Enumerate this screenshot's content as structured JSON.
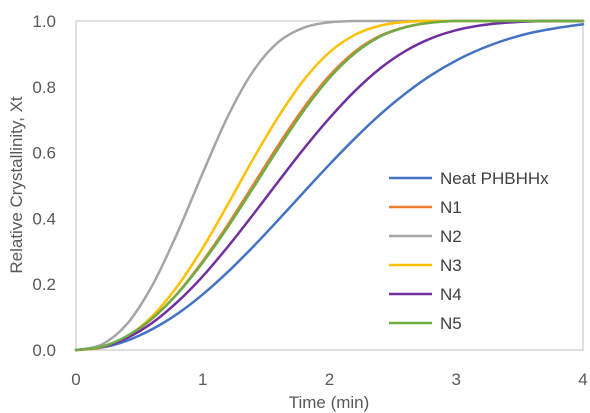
{
  "chart_data": {
    "type": "line",
    "xlabel": "Time (min)",
    "ylabel": "Relative Crystallinity, Xt",
    "xlim": [
      0,
      4
    ],
    "ylim": [
      0,
      1
    ],
    "xticks": [
      "0",
      "1",
      "2",
      "3",
      "4"
    ],
    "yticks": [
      "0.0",
      "0.2",
      "0.4",
      "0.6",
      "0.8",
      "1.0"
    ],
    "grid": false,
    "legend_position": "right",
    "x": [
      0,
      0.2,
      0.4,
      0.6,
      0.8,
      1.0,
      1.2,
      1.4,
      1.6,
      1.8,
      2.0,
      2.2,
      2.4,
      2.6,
      2.8,
      3.0,
      3.2,
      3.4,
      3.6,
      3.8,
      4.0
    ],
    "series": [
      {
        "name": "Neat PHBHHx",
        "color": "#4472C4",
        "values": [
          0,
          0.007,
          0.028,
          0.063,
          0.11,
          0.169,
          0.238,
          0.315,
          0.397,
          0.481,
          0.564,
          0.643,
          0.716,
          0.78,
          0.835,
          0.88,
          0.916,
          0.944,
          0.965,
          0.979,
          0.99
        ]
      },
      {
        "name": "N1",
        "color": "#ED7D31",
        "values": [
          0,
          0.009,
          0.04,
          0.095,
          0.172,
          0.27,
          0.382,
          0.503,
          0.625,
          0.738,
          0.834,
          0.907,
          0.955,
          0.982,
          0.995,
          1.0,
          1.0,
          1.0,
          1.0,
          1.0,
          1.0
        ]
      },
      {
        "name": "N2",
        "color": "#A5A5A5",
        "values": [
          0,
          0.016,
          0.078,
          0.195,
          0.356,
          0.538,
          0.712,
          0.849,
          0.937,
          0.98,
          0.996,
          1.0,
          1.0,
          1.0,
          1.0,
          1.0,
          1.0,
          1.0,
          1.0,
          1.0,
          1.0
        ]
      },
      {
        "name": "N3",
        "color": "#FFC000",
        "values": [
          0,
          0.008,
          0.04,
          0.102,
          0.194,
          0.31,
          0.444,
          0.582,
          0.711,
          0.822,
          0.905,
          0.958,
          0.986,
          0.997,
          1.0,
          1.0,
          1.0,
          1.0,
          1.0,
          1.0,
          1.0
        ]
      },
      {
        "name": "N4",
        "color": "#7030A0",
        "values": [
          0,
          0.009,
          0.036,
          0.082,
          0.146,
          0.224,
          0.315,
          0.413,
          0.514,
          0.613,
          0.705,
          0.787,
          0.856,
          0.909,
          0.947,
          0.972,
          0.987,
          0.995,
          0.999,
          1.0,
          1.0
        ]
      },
      {
        "name": "N5",
        "color": "#70AD47",
        "values": [
          0,
          0.01,
          0.042,
          0.096,
          0.171,
          0.266,
          0.375,
          0.494,
          0.615,
          0.729,
          0.827,
          0.902,
          0.953,
          0.981,
          0.995,
          1.0,
          1.0,
          1.0,
          1.0,
          1.0,
          1.0
        ]
      }
    ]
  }
}
